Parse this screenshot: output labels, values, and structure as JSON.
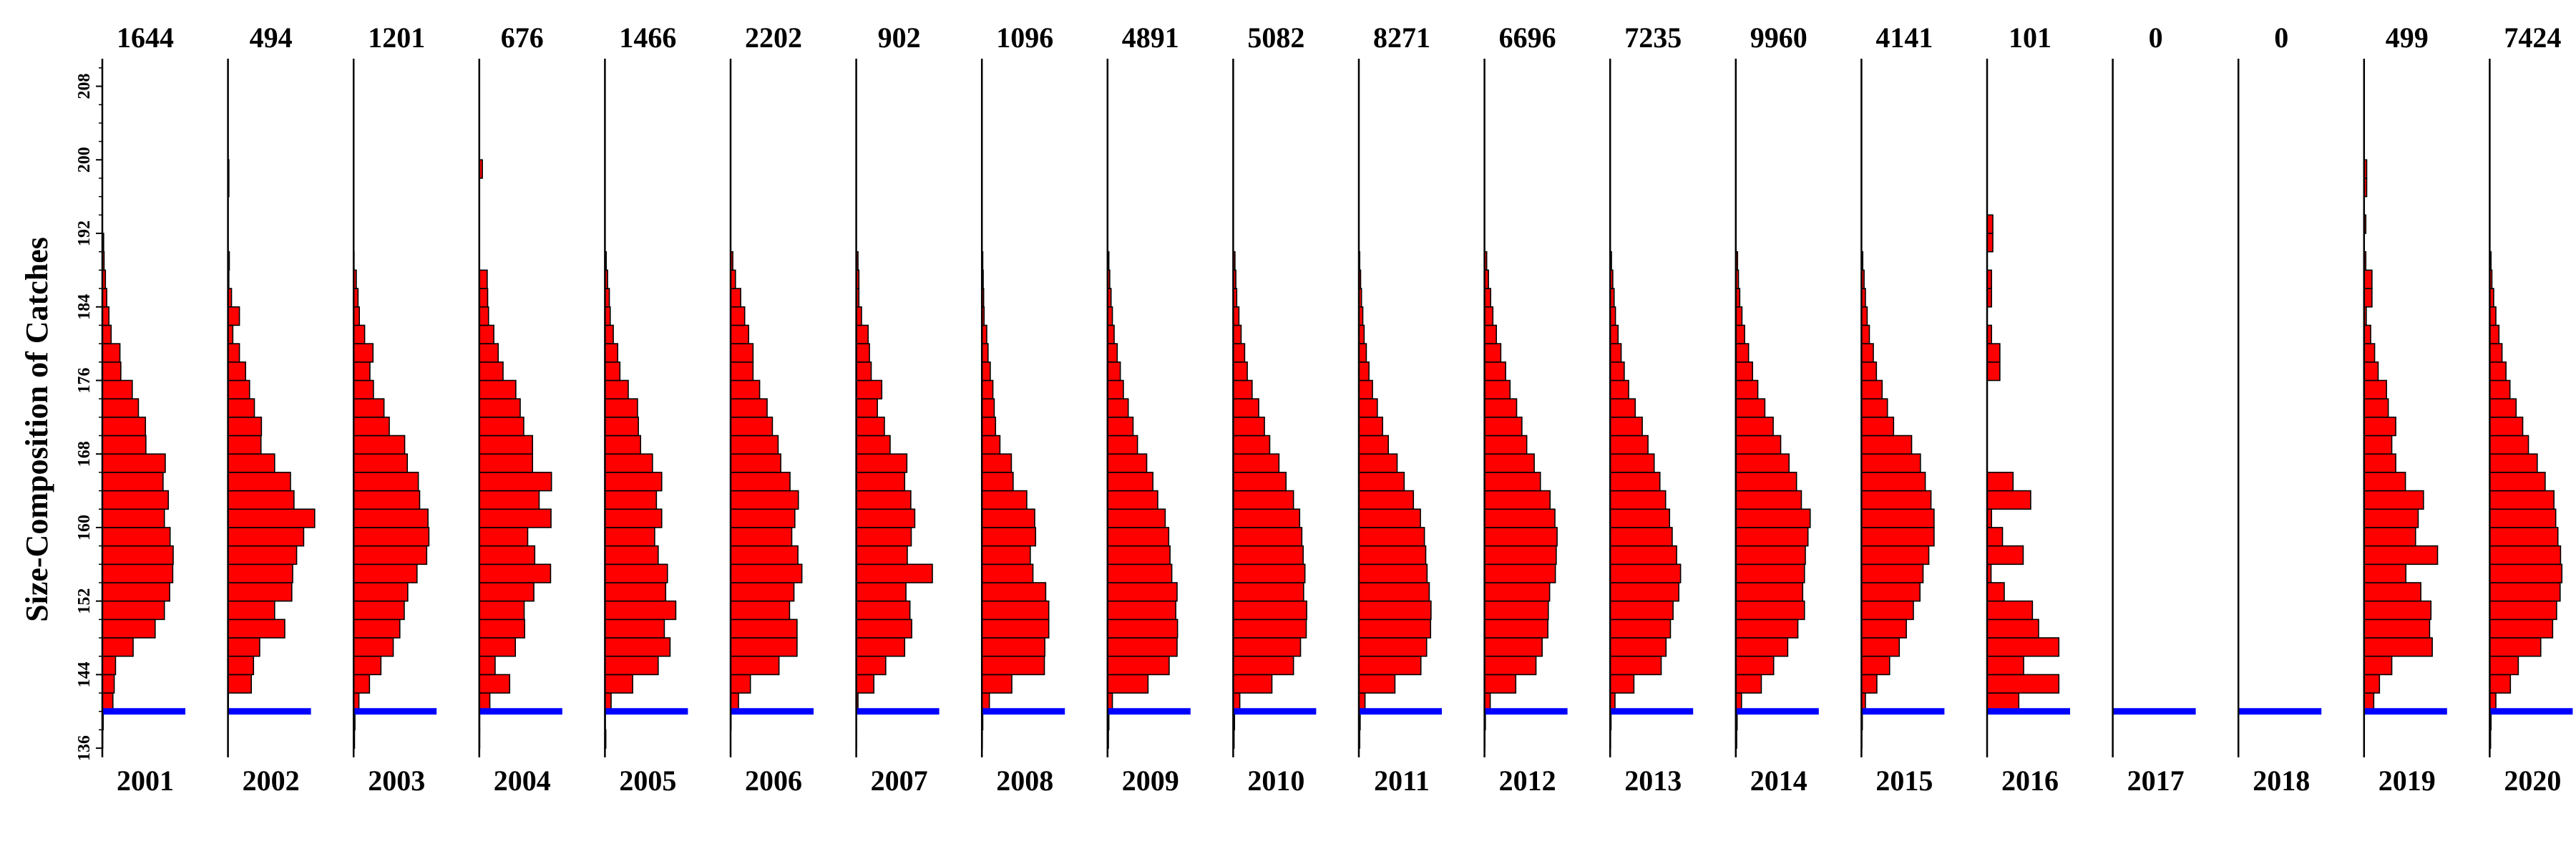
{
  "chart_data": {
    "type": "bar",
    "orientation": "horizontal",
    "ylabel": "Size-Composition of Catches",
    "y_ticks": [
      136,
      144,
      152,
      160,
      168,
      176,
      184,
      192,
      200,
      208
    ],
    "ylim": [
      135,
      211
    ],
    "bin_width": 2,
    "bins": [
      136,
      138,
      140,
      142,
      144,
      146,
      148,
      150,
      152,
      154,
      156,
      158,
      160,
      162,
      164,
      166,
      168,
      170,
      172,
      174,
      176,
      178,
      180,
      182,
      184,
      186,
      188,
      190,
      192,
      194,
      196,
      198,
      200,
      202,
      204,
      206,
      208
    ],
    "reference_line": {
      "value": 140,
      "color": "#0000ff"
    },
    "bar_color": "#ff0000",
    "panels": [
      {
        "year": "2001",
        "count": "1644",
        "values": [
          0.1,
          0.2,
          2.4,
          2.7,
          3.0,
          7.0,
          12.0,
          14.1,
          15.3,
          16.0,
          16.1,
          15.4,
          14.1,
          15.0,
          13.8,
          14.3,
          9.9,
          9.8,
          8.2,
          6.8,
          4.2,
          4.0,
          2.0,
          1.5,
          1.0,
          0.7,
          0.4,
          0.3,
          0,
          0,
          0,
          0,
          0,
          0,
          0,
          0,
          0
        ]
      },
      {
        "year": "2002",
        "count": "494",
        "values": [
          0,
          0,
          0.1,
          5.3,
          5.8,
          7.2,
          12.9,
          10.6,
          14.5,
          14.7,
          15.6,
          17.2,
          19.7,
          15.0,
          14.2,
          10.6,
          7.5,
          7.6,
          6.0,
          4.9,
          4.0,
          2.6,
          1.1,
          2.6,
          0.8,
          0.2,
          0.3,
          0,
          0,
          0,
          0.2,
          0.2,
          0,
          0,
          0,
          0,
          0
        ]
      },
      {
        "year": "2003",
        "count": "1201",
        "values": [
          0.2,
          0.3,
          1.2,
          3.6,
          6.2,
          9.0,
          10.5,
          11.5,
          12.3,
          14.4,
          16.6,
          17.1,
          16.9,
          15.0,
          14.7,
          12.2,
          11.6,
          8.1,
          6.9,
          4.5,
          3.7,
          4.4,
          2.5,
          1.3,
          1.0,
          0.6,
          0.1,
          0,
          0,
          0,
          0,
          0,
          0,
          0,
          0,
          0,
          0
        ]
      },
      {
        "year": "2004",
        "count": "676",
        "values": [
          0.1,
          0.1,
          2.4,
          6.9,
          3.6,
          8.2,
          10.3,
          10.2,
          12.4,
          16.2,
          12.6,
          11.0,
          16.3,
          13.6,
          16.4,
          12.1,
          12.1,
          10.1,
          9.3,
          8.3,
          5.4,
          4.3,
          3.3,
          2.1,
          1.9,
          1.8,
          0,
          0,
          0,
          0,
          0,
          0.7,
          0,
          0,
          0,
          0,
          0
        ]
      },
      {
        "year": "2005",
        "count": "1466",
        "values": [
          0.2,
          0.1,
          1.4,
          6.3,
          12.1,
          14.8,
          13.5,
          16.1,
          13.8,
          14.2,
          12.1,
          11.3,
          12.9,
          11.7,
          12.9,
          10.8,
          8.1,
          7.6,
          7.4,
          5.3,
          3.4,
          2.9,
          1.9,
          1.2,
          1.0,
          0.6,
          0.3,
          0,
          0,
          0,
          0,
          0,
          0,
          0,
          0,
          0,
          0
        ]
      },
      {
        "year": "2006",
        "count": "2202",
        "values": [
          0,
          0.1,
          1.8,
          4.5,
          11.0,
          15.1,
          15.1,
          13.4,
          14.4,
          16.2,
          15.3,
          13.9,
          14.6,
          15.4,
          13.5,
          11.4,
          10.8,
          9.5,
          8.3,
          6.6,
          5.1,
          5.1,
          4.1,
          3.2,
          2.3,
          1.1,
          0.5,
          0,
          0,
          0,
          0,
          0,
          0,
          0,
          0,
          0,
          0
        ]
      },
      {
        "year": "2007",
        "count": "902",
        "values": [
          0.1,
          0.1,
          0.4,
          4.0,
          6.7,
          11.0,
          12.6,
          12.2,
          11.3,
          17.3,
          11.6,
          12.5,
          13.3,
          12.4,
          11.0,
          11.5,
          7.7,
          6.4,
          4.8,
          5.8,
          3.4,
          3.0,
          2.7,
          1.2,
          0.6,
          0.6,
          0.4,
          0,
          0,
          0,
          0,
          0,
          0,
          0,
          0,
          0,
          0
        ]
      },
      {
        "year": "2008",
        "count": "1096",
        "values": [
          0.1,
          0.2,
          1.7,
          6.8,
          14.2,
          14.3,
          15.2,
          15.2,
          14.5,
          11.6,
          11.0,
          12.2,
          12.0,
          10.2,
          7.1,
          6.7,
          4.1,
          3.1,
          2.8,
          2.5,
          1.9,
          1.4,
          1.1,
          0.5,
          0.4,
          0.3,
          0.2,
          0,
          0,
          0,
          0,
          0,
          0,
          0,
          0,
          0,
          0
        ]
      },
      {
        "year": "2009",
        "count": "4891",
        "values": [
          0.2,
          0.3,
          1.1,
          9.2,
          14.0,
          15.8,
          15.9,
          15.5,
          15.8,
          14.6,
          14.2,
          13.9,
          13.1,
          11.4,
          10.3,
          8.9,
          6.8,
          5.8,
          4.7,
          3.6,
          2.9,
          2.2,
          1.5,
          1.1,
          0.8,
          0.5,
          0.3,
          0,
          0,
          0,
          0,
          0,
          0,
          0,
          0,
          0,
          0
        ]
      },
      {
        "year": "2010",
        "count": "5082",
        "values": [
          0.2,
          0.3,
          1.5,
          8.8,
          13.7,
          15.3,
          16.6,
          16.7,
          16.0,
          16.3,
          15.9,
          15.6,
          15.1,
          13.7,
          12.0,
          10.4,
          8.3,
          7.1,
          5.8,
          4.3,
          3.2,
          2.6,
          1.8,
          1.3,
          0.8,
          0.6,
          0.4,
          0,
          0,
          0,
          0,
          0,
          0,
          0,
          0,
          0,
          0
        ]
      },
      {
        "year": "2011",
        "count": "8271",
        "values": [
          0.2,
          0.3,
          1.4,
          8.2,
          14.1,
          15.4,
          16.3,
          16.4,
          16.0,
          15.5,
          15.2,
          14.9,
          14.0,
          12.4,
          10.3,
          8.7,
          6.7,
          5.4,
          4.2,
          3.1,
          2.3,
          1.7,
          1.2,
          0.9,
          0.6,
          0.4,
          0.2,
          0,
          0,
          0,
          0,
          0,
          0,
          0,
          0,
          0,
          0
        ]
      },
      {
        "year": "2012",
        "count": "6696",
        "values": [
          0.1,
          0.2,
          1.3,
          7.1,
          11.7,
          13.1,
          14.4,
          14.5,
          14.8,
          16.1,
          16.3,
          16.5,
          16.0,
          14.9,
          12.7,
          11.3,
          9.6,
          8.5,
          7.3,
          5.8,
          4.8,
          3.7,
          2.7,
          1.9,
          1.4,
          0.9,
          0.5,
          0,
          0,
          0,
          0,
          0,
          0,
          0,
          0,
          0,
          0
        ]
      },
      {
        "year": "2013",
        "count": "7235",
        "values": [
          0.1,
          0.2,
          1.1,
          5.4,
          11.6,
          12.7,
          13.7,
          14.3,
          15.6,
          16.0,
          15.1,
          14.1,
          13.5,
          12.6,
          11.3,
          10.0,
          8.6,
          7.3,
          5.7,
          4.2,
          3.2,
          2.5,
          1.8,
          1.2,
          0.9,
          0.6,
          0.3,
          0,
          0,
          0,
          0,
          0,
          0,
          0,
          0,
          0,
          0
        ]
      },
      {
        "year": "2014",
        "count": "9960",
        "values": [
          0.2,
          0.3,
          1.3,
          5.8,
          8.6,
          11.8,
          14.1,
          15.6,
          15.2,
          15.6,
          15.8,
          16.4,
          16.9,
          14.9,
          13.8,
          12.1,
          10.2,
          8.5,
          6.6,
          5.0,
          3.8,
          2.9,
          2.0,
          1.4,
          0.9,
          0.6,
          0.4,
          0,
          0,
          0,
          0,
          0,
          0,
          0,
          0,
          0,
          0
        ]
      },
      {
        "year": "2015",
        "count": "4141",
        "values": [
          0.1,
          0.2,
          0.9,
          3.5,
          6.4,
          8.6,
          10.2,
          11.8,
          13.3,
          14.0,
          15.3,
          16.5,
          16.5,
          15.8,
          14.5,
          13.4,
          11.4,
          7.3,
          5.9,
          4.7,
          3.4,
          2.7,
          1.8,
          1.3,
          0.9,
          0.6,
          0.3,
          0,
          0,
          0,
          0,
          0,
          0,
          0,
          0,
          0,
          0
        ]
      },
      {
        "year": "2016",
        "count": "101",
        "values": [
          0,
          0,
          7.2,
          16.3,
          8.3,
          16.3,
          11.7,
          10.3,
          3.9,
          0.9,
          8.2,
          3.5,
          1.0,
          9.9,
          5.9,
          0,
          0,
          0,
          0,
          0,
          2.9,
          2.9,
          1.0,
          0,
          1.0,
          1.0,
          0,
          1.3,
          1.3,
          0,
          0,
          0,
          0,
          0,
          0,
          0,
          0
        ]
      },
      {
        "year": "2017",
        "count": "0",
        "values": []
      },
      {
        "year": "2018",
        "count": "0",
        "values": []
      },
      {
        "year": "2019",
        "count": "499",
        "values": [
          0,
          0,
          2.2,
          3.5,
          6.3,
          15.5,
          14.9,
          15.2,
          12.9,
          9.5,
          16.7,
          11.7,
          12.3,
          13.5,
          9.4,
          7.2,
          6.3,
          7.2,
          5.5,
          5.1,
          3.2,
          2.4,
          1.5,
          0.5,
          1.8,
          1.8,
          0.4,
          0,
          0.4,
          0,
          0.6,
          0.6,
          0,
          0,
          0,
          0,
          0
        ]
      },
      {
        "year": "2020",
        "count": "7424",
        "values": [
          0.2,
          0.3,
          1.4,
          4.7,
          6.5,
          11.6,
          14.3,
          15.2,
          16.0,
          16.4,
          16.1,
          15.5,
          15.0,
          14.6,
          12.6,
          10.8,
          8.8,
          7.5,
          6.0,
          4.6,
          3.7,
          2.8,
          2.1,
          1.4,
          0.9,
          0.5,
          0.3,
          0,
          0,
          0,
          0,
          0,
          0,
          0,
          0,
          0,
          0
        ]
      }
    ]
  }
}
